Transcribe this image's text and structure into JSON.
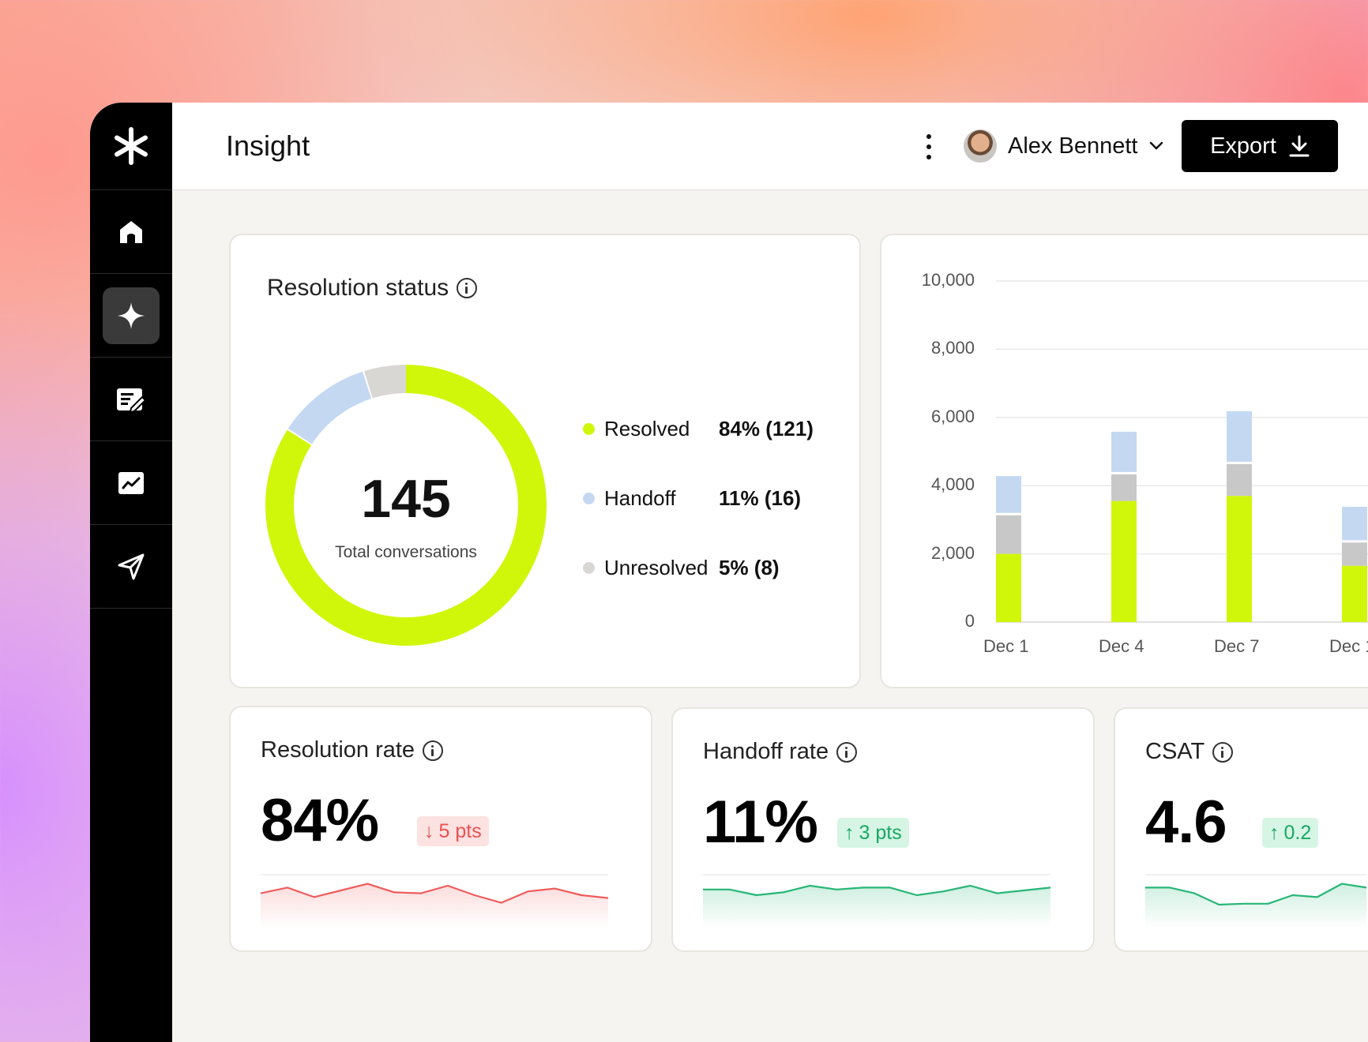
{
  "app": {
    "page_title": "Insight",
    "user_name": "Alex Bennett",
    "export_label": "Export",
    "sidebar": [
      {
        "icon": "asterisk-logo-icon"
      },
      {
        "icon": "home-icon"
      },
      {
        "icon": "sparkle-icon",
        "active": true
      },
      {
        "icon": "edit-list-icon"
      },
      {
        "icon": "chart-icon"
      },
      {
        "icon": "send-icon"
      }
    ]
  },
  "resolution_status": {
    "title": "Resolution status",
    "total": "145",
    "total_label": "Total conversations",
    "legend": [
      {
        "label": "Resolved",
        "value": "84% (121)",
        "color": "#d0f70a"
      },
      {
        "label": "Handoff",
        "value": "11% (16)",
        "color": "#c4d8f2"
      },
      {
        "label": "Unresolved",
        "value": "5% (8)",
        "color": "#d9d7d3"
      }
    ]
  },
  "chart_data": [
    {
      "type": "pie",
      "categories": [
        "Resolved",
        "Handoff",
        "Unresolved"
      ],
      "values": [
        84,
        11,
        5
      ],
      "colors": [
        "#d0f70a",
        "#c4d8f2",
        "#d9d7d3"
      ],
      "variant": "donut",
      "center_value": "145",
      "center_label": "Total conversations"
    },
    {
      "type": "bar",
      "stacked": true,
      "categories": [
        "Dec 1",
        "Dec 4",
        "Dec 7",
        "Dec 1"
      ],
      "series": [
        {
          "values": [
            2000,
            3550,
            3700,
            1650
          ],
          "color": "#d0f70a"
        },
        {
          "values": [
            1200,
            850,
            1000,
            750
          ],
          "color": "#c8c8c8"
        },
        {
          "values": [
            1150,
            1250,
            1550,
            1050
          ],
          "color": "#c4d8f2"
        }
      ],
      "yticks": [
        "0",
        "2,000",
        "4,000",
        "6,000",
        "8,000",
        "10,000"
      ],
      "ylim": [
        0,
        10000
      ],
      "grid": true
    },
    {
      "type": "line",
      "title": "Resolution rate",
      "values": [
        42,
        48,
        38,
        45,
        52,
        43,
        42,
        50,
        40,
        32,
        44,
        47,
        40,
        37
      ],
      "color": "#ef5c5c"
    },
    {
      "type": "line",
      "title": "Handoff rate",
      "values": [
        46,
        46,
        40,
        43,
        50,
        46,
        48,
        48,
        40,
        44,
        50,
        42,
        45,
        48
      ],
      "color": "#27b676"
    },
    {
      "type": "line",
      "title": "CSAT",
      "values": [
        48,
        48,
        42,
        30,
        31,
        31,
        40,
        38,
        52,
        48
      ],
      "color": "#27b676"
    }
  ],
  "metrics": [
    {
      "title": "Resolution rate",
      "value": "84%",
      "delta": "5 pts",
      "direction": "down"
    },
    {
      "title": "Handoff rate",
      "value": "11%",
      "delta": "3 pts",
      "direction": "up"
    },
    {
      "title": "CSAT",
      "value": "4.6",
      "delta": "0.2",
      "direction": "up"
    }
  ]
}
